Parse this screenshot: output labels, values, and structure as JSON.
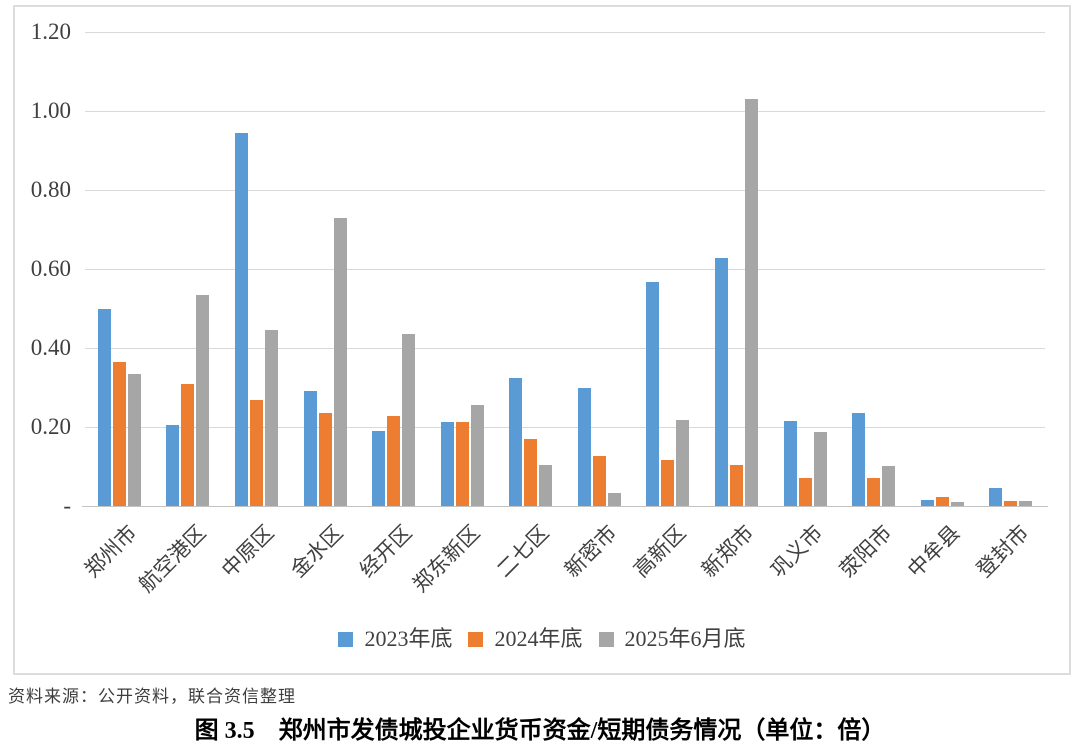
{
  "figure": {
    "source_note": "资料来源：公开资料，联合资信整理",
    "caption": "图 3.5　郑州市发债城投企业货币资金/短期债务情况（单位：倍）"
  },
  "chart_data": {
    "type": "bar",
    "title": "",
    "xlabel": "",
    "ylabel": "",
    "unit": "倍",
    "ylim": [
      0,
      1.2
    ],
    "grid": "horizontal",
    "legend_position": "bottom",
    "categories": [
      "郑州市",
      "航空港区",
      "中原区",
      "金水区",
      "经开区",
      "郑东新区",
      "二七区",
      "新密市",
      "高新区",
      "新郑市",
      "巩义市",
      "荥阳市",
      "中牟县",
      "登封市"
    ],
    "series": [
      {
        "name": "2023年底",
        "color": "#5b9bd5",
        "values": [
          0.5,
          0.205,
          0.945,
          0.29,
          0.19,
          0.213,
          0.325,
          0.3,
          0.567,
          0.628,
          0.215,
          0.235,
          0.015,
          0.045
        ]
      },
      {
        "name": "2024年底",
        "color": "#ed7d31",
        "values": [
          0.365,
          0.31,
          0.268,
          0.235,
          0.228,
          0.213,
          0.17,
          0.127,
          0.117,
          0.105,
          0.07,
          0.07,
          0.022,
          0.013
        ]
      },
      {
        "name": "2025年6月底",
        "color": "#a6a6a6",
        "values": [
          0.335,
          0.535,
          0.445,
          0.73,
          0.435,
          0.255,
          0.105,
          0.032,
          0.217,
          1.03,
          0.187,
          0.102,
          0.01,
          0.012
        ]
      }
    ],
    "y_ticks": [
      {
        "label": "1.20",
        "value": 1.2
      },
      {
        "label": "1.00",
        "value": 1.0
      },
      {
        "label": "0.80",
        "value": 0.8
      },
      {
        "label": "0.60",
        "value": 0.6
      },
      {
        "label": "0.40",
        "value": 0.4
      },
      {
        "label": "0.20",
        "value": 0.2
      },
      {
        "label": "-",
        "value": 0
      }
    ]
  }
}
